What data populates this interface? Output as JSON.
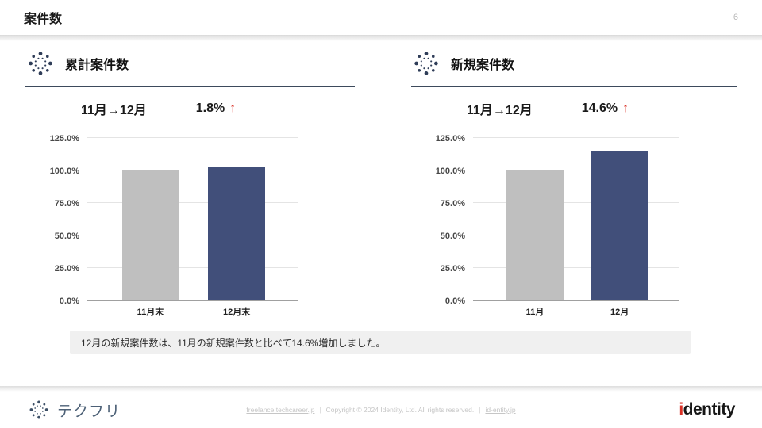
{
  "header": {
    "title": "案件数",
    "page_number": "6"
  },
  "panels": [
    {
      "title": "累計案件数",
      "period": "11月→12月",
      "change": "1.8%",
      "arrow": "↑"
    },
    {
      "title": "新規案件数",
      "period": "11月→12月",
      "change": "14.6%",
      "arrow": "↑"
    }
  ],
  "chart_data": [
    {
      "type": "bar",
      "title": "累計案件数",
      "categories": [
        "11月末",
        "12月末"
      ],
      "values": [
        100.0,
        101.8
      ],
      "unit": "%",
      "y_tick_labels": [
        "0.0%",
        "25.0%",
        "50.0%",
        "75.0%",
        "100.0%",
        "125.0%"
      ],
      "y_tick_values": [
        0,
        25,
        50,
        75,
        100,
        125
      ],
      "ylim": [
        0,
        125
      ],
      "bar_colors": [
        "#bfbfbf",
        "#414f7a"
      ],
      "grid": true,
      "legend": false
    },
    {
      "type": "bar",
      "title": "新規案件数",
      "categories": [
        "11月",
        "12月"
      ],
      "values": [
        100.0,
        114.6
      ],
      "unit": "%",
      "y_tick_labels": [
        "0.0%",
        "25.0%",
        "50.0%",
        "75.0%",
        "100.0%",
        "125.0%"
      ],
      "y_tick_values": [
        0,
        25,
        50,
        75,
        100,
        125
      ],
      "ylim": [
        0,
        125
      ],
      "bar_colors": [
        "#bfbfbf",
        "#414f7a"
      ],
      "grid": true,
      "legend": false
    }
  ],
  "note": {
    "text": "12月の新規案件数は、11月の新規案件数と比べて14.6%増加しました。"
  },
  "footer": {
    "brand": "テクフリ",
    "link_left": "freelance.techcareer.jp",
    "copyright": "Copyright © 2024 Identity, Ltd. All rights reserved.",
    "link_right": "id-entity.jp",
    "separator": "|",
    "logo_i": "i",
    "logo_rest": "dentity"
  },
  "colors": {
    "bar_gray": "#bfbfbf",
    "bar_navy": "#414f7a",
    "accent_red": "#d93025",
    "brand_slate": "#4c6076"
  }
}
